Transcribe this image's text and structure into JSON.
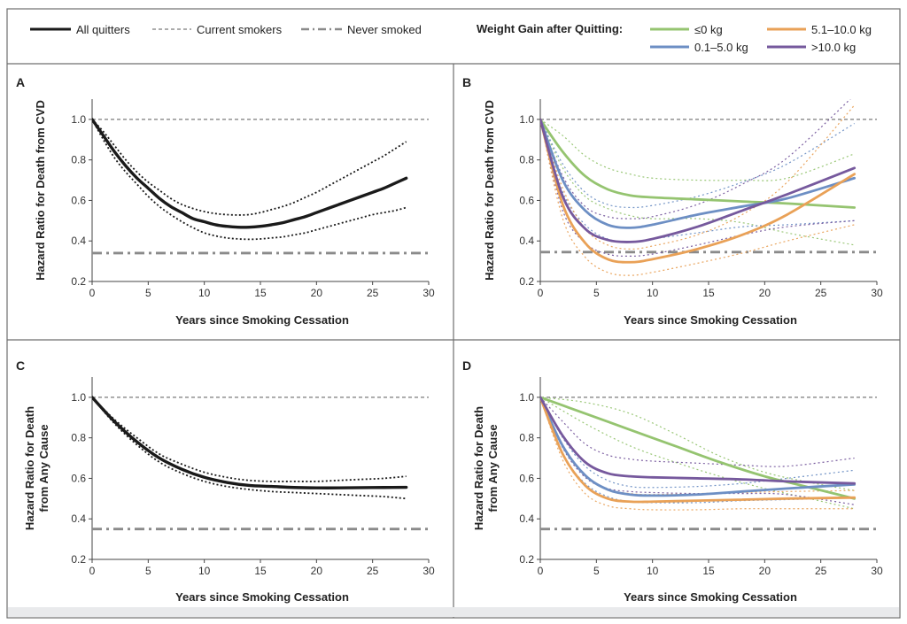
{
  "colors": {
    "all_quitters": "#1a1a1a",
    "reference": "#7a7a7a",
    "never": "#8a8a8a",
    "le0": "#95c470",
    "g0_5": "#6d8fc4",
    "g5_10": "#e9a157",
    "gt10": "#76599d",
    "frame": "#6f6f6f",
    "bottom_band": "#e9eaec"
  },
  "legend": {
    "all_quitters": "All quitters",
    "current_smokers": "Current smokers",
    "never_smoked": "Never smoked",
    "weight_title": "Weight Gain after Quitting:",
    "le0": "≤0 kg",
    "g5_10": "5.1–10.0 kg",
    "g0_5": "0.1–5.0 kg",
    "gt10": ">10.0 kg"
  },
  "chart_data": [
    {
      "panel": "A",
      "type": "line",
      "ylabel": [
        "Hazard Ratio for Death from CVD"
      ],
      "xlabel": "Years since Smoking Cessation",
      "xlim": [
        0,
        30
      ],
      "ylim": [
        0.2,
        1.1
      ],
      "xticks": [
        0,
        5,
        10,
        15,
        20,
        25,
        30
      ],
      "xtick_labels": [
        "0",
        "5",
        "10",
        "15",
        "20",
        "25",
        "30"
      ],
      "yticks": [
        0.2,
        0.4,
        0.6,
        0.8,
        1.0
      ],
      "ytick_labels": [
        "0.2",
        "0.4",
        "0.6",
        "0.8",
        "1.0"
      ],
      "reference_lines": [
        {
          "name": "current-smokers",
          "value": 1.0,
          "style": "dashed"
        },
        {
          "name": "never-smoked",
          "value": 0.34,
          "style": "dashdot"
        }
      ],
      "series": [
        {
          "name": "All quitters",
          "key": "all_quitters",
          "x": [
            0,
            1,
            2,
            3,
            4,
            5,
            6,
            7,
            8,
            9,
            10,
            11,
            12,
            13,
            14,
            15,
            16,
            17,
            18,
            19,
            20,
            21,
            22,
            23,
            24,
            25,
            26,
            27,
            28
          ],
          "y": [
            1.0,
            0.92,
            0.84,
            0.77,
            0.71,
            0.66,
            0.61,
            0.57,
            0.54,
            0.51,
            0.495,
            0.48,
            0.472,
            0.468,
            0.468,
            0.472,
            0.48,
            0.49,
            0.505,
            0.52,
            0.54,
            0.56,
            0.58,
            0.6,
            0.62,
            0.64,
            0.66,
            0.685,
            0.71
          ],
          "ci_upper": [
            1.0,
            0.94,
            0.87,
            0.8,
            0.74,
            0.69,
            0.65,
            0.61,
            0.58,
            0.56,
            0.545,
            0.535,
            0.53,
            0.528,
            0.53,
            0.54,
            0.555,
            0.57,
            0.59,
            0.615,
            0.64,
            0.67,
            0.7,
            0.73,
            0.76,
            0.79,
            0.82,
            0.855,
            0.89
          ],
          "ci_lower": [
            1.0,
            0.9,
            0.81,
            0.74,
            0.68,
            0.62,
            0.57,
            0.53,
            0.495,
            0.465,
            0.44,
            0.425,
            0.415,
            0.41,
            0.408,
            0.41,
            0.415,
            0.42,
            0.43,
            0.44,
            0.455,
            0.47,
            0.485,
            0.5,
            0.515,
            0.53,
            0.54,
            0.55,
            0.565
          ]
        }
      ]
    },
    {
      "panel": "B",
      "type": "line",
      "ylabel": [
        "Hazard Ratio for Death from CVD"
      ],
      "xlabel": "Years since Smoking Cessation",
      "xlim": [
        0,
        30
      ],
      "ylim": [
        0.2,
        1.1
      ],
      "xticks": [
        0,
        5,
        10,
        15,
        20,
        25,
        30
      ],
      "xtick_labels": [
        "0",
        "5",
        "10",
        "15",
        "20",
        "25",
        "30"
      ],
      "yticks": [
        0.2,
        0.4,
        0.6,
        0.8,
        1.0
      ],
      "ytick_labels": [
        "0.2",
        "0.4",
        "0.6",
        "0.8",
        "1.0"
      ],
      "reference_lines": [
        {
          "name": "current-smokers",
          "value": 1.0,
          "style": "dashed"
        },
        {
          "name": "never-smoked",
          "value": 0.345,
          "style": "dashdot"
        }
      ],
      "series": [
        {
          "name": "≤0 kg",
          "key": "le0",
          "x": [
            0,
            2,
            4,
            6,
            8,
            10,
            14,
            18,
            22,
            28
          ],
          "y": [
            1.0,
            0.84,
            0.72,
            0.655,
            0.625,
            0.615,
            0.605,
            0.595,
            0.585,
            0.565
          ],
          "ci_upper": [
            1.0,
            0.92,
            0.82,
            0.76,
            0.73,
            0.71,
            0.7,
            0.7,
            0.71,
            0.83
          ],
          "ci_lower": [
            1.0,
            0.76,
            0.62,
            0.56,
            0.525,
            0.51,
            0.51,
            0.49,
            0.44,
            0.38
          ]
        },
        {
          "name": "0.1–5.0 kg",
          "key": "g0_5",
          "x": [
            0,
            2,
            4,
            6,
            8,
            10,
            14,
            18,
            22,
            28
          ],
          "y": [
            1.0,
            0.7,
            0.55,
            0.48,
            0.465,
            0.48,
            0.53,
            0.57,
            0.61,
            0.71
          ],
          "ci_upper": [
            1.0,
            0.78,
            0.64,
            0.58,
            0.565,
            0.575,
            0.62,
            0.69,
            0.78,
            0.98
          ],
          "ci_lower": [
            1.0,
            0.64,
            0.48,
            0.41,
            0.395,
            0.41,
            0.44,
            0.47,
            0.48,
            0.5
          ]
        },
        {
          "name": "5.1–10.0 kg",
          "key": "g5_10",
          "x": [
            0,
            2,
            4,
            6,
            8,
            10,
            14,
            18,
            22,
            28
          ],
          "y": [
            1.0,
            0.58,
            0.39,
            0.31,
            0.295,
            0.31,
            0.36,
            0.43,
            0.53,
            0.73
          ],
          "ci_upper": [
            1.0,
            0.66,
            0.46,
            0.38,
            0.36,
            0.375,
            0.43,
            0.53,
            0.69,
            1.07
          ],
          "ci_lower": [
            1.0,
            0.51,
            0.32,
            0.245,
            0.23,
            0.245,
            0.29,
            0.34,
            0.4,
            0.48
          ]
        },
        {
          "name": ">10.0 kg",
          "key": "gt10",
          "x": [
            0,
            2,
            4,
            6,
            8,
            10,
            14,
            18,
            22,
            28
          ],
          "y": [
            1.0,
            0.62,
            0.46,
            0.405,
            0.395,
            0.41,
            0.47,
            0.55,
            0.63,
            0.76
          ],
          "ci_upper": [
            1.0,
            0.72,
            0.57,
            0.52,
            0.51,
            0.52,
            0.58,
            0.68,
            0.81,
            1.12
          ],
          "ci_lower": [
            1.0,
            0.55,
            0.39,
            0.335,
            0.325,
            0.335,
            0.38,
            0.43,
            0.47,
            0.5
          ]
        }
      ]
    },
    {
      "panel": "C",
      "type": "line",
      "ylabel": [
        "Hazard Ratio for Death",
        "from Any Cause"
      ],
      "xlabel": "Years since Smoking Cessation",
      "xlim": [
        0,
        30
      ],
      "ylim": [
        0.2,
        1.1
      ],
      "xticks": [
        0,
        5,
        10,
        15,
        20,
        25,
        30
      ],
      "xtick_labels": [
        "0",
        "5",
        "10",
        "15",
        "20",
        "25",
        "30"
      ],
      "yticks": [
        0.2,
        0.4,
        0.6,
        0.8,
        1.0
      ],
      "ytick_labels": [
        "0.2",
        "0.4",
        "0.6",
        "0.8",
        "1.0"
      ],
      "reference_lines": [
        {
          "name": "current-smokers",
          "value": 1.0,
          "style": "dashed"
        },
        {
          "name": "never-smoked",
          "value": 0.35,
          "style": "dashdot"
        }
      ],
      "series": [
        {
          "name": "All quitters",
          "key": "all_quitters",
          "x": [
            0,
            2,
            4,
            6,
            8,
            10,
            12,
            14,
            16,
            18,
            20,
            22,
            24,
            26,
            28
          ],
          "y": [
            1.0,
            0.88,
            0.78,
            0.7,
            0.645,
            0.605,
            0.58,
            0.565,
            0.56,
            0.555,
            0.553,
            0.553,
            0.554,
            0.555,
            0.556
          ],
          "ci_upper": [
            1.0,
            0.89,
            0.8,
            0.72,
            0.67,
            0.63,
            0.605,
            0.59,
            0.585,
            0.585,
            0.585,
            0.59,
            0.595,
            0.6,
            0.61
          ],
          "ci_lower": [
            1.0,
            0.87,
            0.765,
            0.68,
            0.625,
            0.585,
            0.56,
            0.545,
            0.535,
            0.53,
            0.525,
            0.52,
            0.515,
            0.51,
            0.5
          ]
        }
      ]
    },
    {
      "panel": "D",
      "type": "line",
      "ylabel": [
        "Hazard Ratio for Death",
        "from Any Cause"
      ],
      "xlabel": "Years since Smoking Cessation",
      "xlim": [
        0,
        30
      ],
      "ylim": [
        0.2,
        1.1
      ],
      "xticks": [
        0,
        5,
        10,
        15,
        20,
        25,
        30
      ],
      "xtick_labels": [
        "0",
        "5",
        "10",
        "15",
        "20",
        "25",
        "30"
      ],
      "yticks": [
        0.2,
        0.4,
        0.6,
        0.8,
        1.0
      ],
      "ytick_labels": [
        "0.2",
        "0.4",
        "0.6",
        "0.8",
        "1.0"
      ],
      "reference_lines": [
        {
          "name": "current-smokers",
          "value": 1.0,
          "style": "dashed"
        },
        {
          "name": "never-smoked",
          "value": 0.35,
          "style": "dashdot"
        }
      ],
      "series": [
        {
          "name": "≤0 kg",
          "key": "le0",
          "x": [
            0,
            4,
            8,
            12,
            16,
            20,
            24,
            28
          ],
          "y": [
            1.0,
            0.92,
            0.84,
            0.76,
            0.68,
            0.61,
            0.555,
            0.5
          ],
          "ci_upper": [
            1.0,
            0.975,
            0.92,
            0.82,
            0.71,
            0.63,
            0.58,
            0.54
          ],
          "ci_lower": [
            1.0,
            0.87,
            0.76,
            0.68,
            0.61,
            0.55,
            0.5,
            0.45
          ]
        },
        {
          "name": "0.1–5.0 kg",
          "key": "g0_5",
          "x": [
            0,
            2,
            4,
            6,
            8,
            10,
            14,
            18,
            22,
            28
          ],
          "y": [
            1.0,
            0.76,
            0.615,
            0.545,
            0.52,
            0.515,
            0.52,
            0.535,
            0.55,
            0.57
          ],
          "ci_upper": [
            1.0,
            0.8,
            0.66,
            0.59,
            0.56,
            0.555,
            0.56,
            0.575,
            0.6,
            0.64
          ],
          "ci_lower": [
            1.0,
            0.72,
            0.575,
            0.51,
            0.485,
            0.48,
            0.48,
            0.49,
            0.495,
            0.505
          ]
        },
        {
          "name": "5.1–10.0 kg",
          "key": "g5_10",
          "x": [
            0,
            2,
            4,
            6,
            8,
            10,
            14,
            18,
            22,
            28
          ],
          "y": [
            1.0,
            0.72,
            0.565,
            0.5,
            0.485,
            0.485,
            0.49,
            0.495,
            0.5,
            0.505
          ],
          "ci_upper": [
            1.0,
            0.76,
            0.61,
            0.545,
            0.525,
            0.52,
            0.525,
            0.53,
            0.535,
            0.54
          ],
          "ci_lower": [
            1.0,
            0.69,
            0.525,
            0.465,
            0.45,
            0.445,
            0.445,
            0.45,
            0.45,
            0.45
          ]
        },
        {
          "name": ">10.0 kg",
          "key": "gt10",
          "x": [
            0,
            2,
            4,
            6,
            8,
            10,
            14,
            18,
            22,
            28
          ],
          "y": [
            1.0,
            0.81,
            0.68,
            0.625,
            0.61,
            0.605,
            0.6,
            0.595,
            0.585,
            0.575
          ],
          "ci_upper": [
            1.0,
            0.88,
            0.77,
            0.715,
            0.695,
            0.685,
            0.675,
            0.665,
            0.66,
            0.7
          ],
          "ci_lower": [
            1.0,
            0.75,
            0.605,
            0.55,
            0.535,
            0.53,
            0.525,
            0.525,
            0.52,
            0.47
          ]
        }
      ]
    }
  ]
}
